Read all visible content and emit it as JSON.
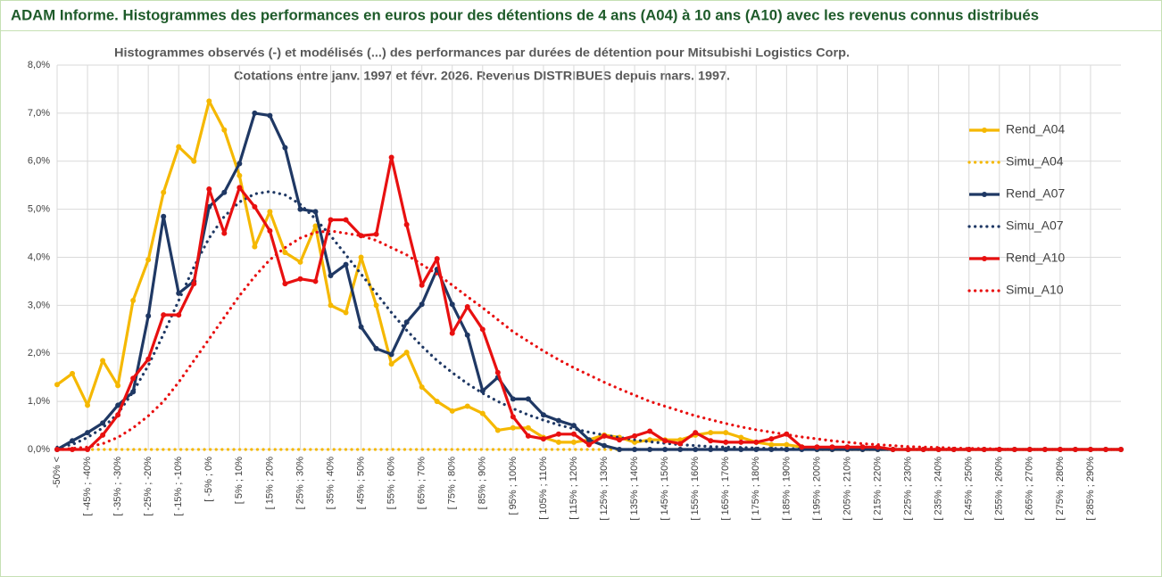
{
  "chart_data": {
    "type": "line",
    "title": "ADAM Informe. Histogrammes des performances en euros pour des détentions de 4 ans (A04) à 10 ans (A10) avec les revenus connus distribués",
    "subtitle": [
      "Histogrammes observés (-) et modélisés (...) des performances par durées de détention pour Mitsubishi Logistics Corp.",
      "Cotations entre janv. 1997 et févr. 2026. Revenus DISTRIBUES depuis mars. 1997."
    ],
    "categories": [
      "-50% <",
      null,
      "[ -45% ; -40%",
      null,
      "[ -35% ; -30%",
      null,
      "[ -25% ; -20%",
      null,
      "[ -15% ; -10%",
      null,
      "[ -5% ; 0%",
      null,
      "[ 5% ; 10%",
      null,
      "[ 15% ; 20%",
      null,
      "[ 25% ; 30%",
      null,
      "[ 35% ; 40%",
      null,
      "[ 45% ; 50%",
      null,
      "[ 55% ; 60%",
      null,
      "[ 65% ; 70%",
      null,
      "[ 75% ; 80%",
      null,
      "[ 85% ; 90%",
      null,
      "[ 95% ; 100%",
      null,
      "[ 105% ; 110%",
      null,
      "[ 115% ; 120%",
      null,
      "[ 125% ; 130%",
      null,
      "[ 135% ; 140%",
      null,
      "[ 145% ; 150%",
      null,
      "[ 155% ; 160%",
      null,
      "[ 165% ; 170%",
      null,
      "[ 175% ; 180%",
      null,
      "[ 185% ; 190%",
      null,
      "[ 195% ; 200%",
      null,
      "[ 205% ; 210%",
      null,
      "[ 215% ; 220%",
      null,
      "[ 225% ; 230%",
      null,
      "[ 235% ; 240%",
      null,
      "[ 245% ; 250%",
      null,
      "[ 255% ; 260%",
      null,
      "[ 265% ; 270%",
      null,
      "[ 275% ; 280%",
      null,
      "[ 285% ; 290%",
      null,
      null
    ],
    "ylim": [
      0,
      8
    ],
    "yticks": [
      {
        "value": 0,
        "label": "0,0%"
      },
      {
        "value": 1,
        "label": "1,0%"
      },
      {
        "value": 2,
        "label": "2,0%"
      },
      {
        "value": 3,
        "label": "3,0%"
      },
      {
        "value": 4,
        "label": "4,0%"
      },
      {
        "value": 5,
        "label": "5,0%"
      },
      {
        "value": 6,
        "label": "6,0%"
      },
      {
        "value": 7,
        "label": "7,0%"
      },
      {
        "value": 8,
        "label": "8,0%"
      }
    ],
    "grid": true,
    "legend": "right",
    "series": [
      {
        "name": "Rend_A04",
        "color": "#f5b800",
        "dotted": false,
        "markers": true,
        "values": [
          1.35,
          1.58,
          0.92,
          1.85,
          1.33,
          3.1,
          3.95,
          5.35,
          6.3,
          6.0,
          7.25,
          6.65,
          5.7,
          4.22,
          4.95,
          4.1,
          3.9,
          4.65,
          3.0,
          2.85,
          4.0,
          3.0,
          1.78,
          2.02,
          1.3,
          1.0,
          0.8,
          0.9,
          0.75,
          0.4,
          0.45,
          0.45,
          0.25,
          0.15,
          0.15,
          0.2,
          0.3,
          0.25,
          0.15,
          0.2,
          0.2,
          0.2,
          0.3,
          0.35,
          0.35,
          0.25,
          0.15,
          0.1,
          0.1,
          0.05,
          0,
          0,
          0,
          0,
          0,
          0,
          0,
          0,
          0,
          0,
          0,
          0,
          0,
          0,
          0,
          0,
          0,
          0,
          0,
          0,
          0
        ]
      },
      {
        "name": "Simu_A04",
        "color": "#f5b800",
        "dotted": true,
        "markers": false,
        "values": [
          0,
          0,
          0,
          0,
          0,
          0,
          0,
          0,
          0,
          0,
          0,
          0,
          0,
          0,
          0,
          0,
          0,
          0,
          0,
          0,
          0,
          0,
          0,
          0,
          0,
          0,
          0,
          0,
          0,
          0,
          0,
          0,
          0,
          0,
          0,
          0,
          0,
          0,
          0,
          0,
          0,
          0,
          0,
          0,
          0,
          0,
          0,
          0,
          0,
          0,
          0,
          0,
          0,
          0,
          0,
          0,
          0,
          0,
          0,
          0,
          0,
          0,
          0,
          0,
          0,
          0,
          0,
          0,
          0,
          0,
          0
        ]
      },
      {
        "name": "Rend_A07",
        "color": "#1f3864",
        "dotted": false,
        "markers": true,
        "values": [
          0,
          0.18,
          0.35,
          0.55,
          0.92,
          1.2,
          2.78,
          4.85,
          3.25,
          3.5,
          5.05,
          5.35,
          5.95,
          7.0,
          6.95,
          6.28,
          5.0,
          4.95,
          3.62,
          3.85,
          2.55,
          2.1,
          1.98,
          2.65,
          3.02,
          3.75,
          3.02,
          2.38,
          1.22,
          1.5,
          1.05,
          1.05,
          0.72,
          0.6,
          0.5,
          0.2,
          0.08,
          0,
          0,
          0,
          0,
          0,
          0,
          0,
          0,
          0,
          0,
          0,
          0,
          0,
          0,
          0,
          0,
          0,
          0,
          0,
          0,
          0,
          0,
          0,
          0,
          0,
          0,
          0,
          0,
          0,
          0,
          0,
          0,
          0,
          0
        ]
      },
      {
        "name": "Simu_A07",
        "color": "#1f3864",
        "dotted": true,
        "markers": false,
        "values": [
          0.05,
          0.1,
          0.25,
          0.45,
          0.75,
          1.2,
          1.75,
          2.4,
          3.1,
          3.8,
          4.4,
          4.85,
          5.15,
          5.32,
          5.37,
          5.3,
          5.1,
          4.8,
          4.45,
          4.05,
          3.65,
          3.25,
          2.85,
          2.48,
          2.15,
          1.85,
          1.6,
          1.37,
          1.17,
          1.0,
          0.85,
          0.72,
          0.61,
          0.51,
          0.43,
          0.36,
          0.3,
          0.25,
          0.2,
          0.16,
          0.13,
          0.1,
          0.08,
          0.06,
          0.05,
          0.04,
          0.03,
          0.02,
          0.02,
          0.01,
          0,
          0,
          0,
          0,
          0,
          0,
          0,
          0,
          0,
          0,
          0,
          0,
          0,
          0,
          0,
          0,
          0,
          0,
          0,
          0,
          0
        ]
      },
      {
        "name": "Rend_A10",
        "color": "#e81010",
        "dotted": false,
        "markers": true,
        "values": [
          0,
          0,
          0,
          0.3,
          0.72,
          1.48,
          1.88,
          2.8,
          2.8,
          3.45,
          5.42,
          4.5,
          5.45,
          5.05,
          4.55,
          3.45,
          3.55,
          3.5,
          4.78,
          4.78,
          4.45,
          4.48,
          6.08,
          4.68,
          3.42,
          3.97,
          2.42,
          2.97,
          2.5,
          1.6,
          0.68,
          0.28,
          0.22,
          0.32,
          0.32,
          0.1,
          0.28,
          0.2,
          0.28,
          0.38,
          0.18,
          0.12,
          0.35,
          0.18,
          0.15,
          0.15,
          0.15,
          0.22,
          0.32,
          0.05,
          0.05,
          0.05,
          0.05,
          0.05,
          0.05,
          0,
          0,
          0,
          0,
          0,
          0,
          0,
          0,
          0,
          0,
          0,
          0,
          0,
          0,
          0,
          0
        ]
      },
      {
        "name": "Simu_A10",
        "color": "#e81010",
        "dotted": true,
        "markers": false,
        "values": [
          0,
          0.02,
          0.05,
          0.12,
          0.25,
          0.45,
          0.7,
          1.0,
          1.4,
          1.85,
          2.3,
          2.75,
          3.2,
          3.6,
          3.95,
          4.2,
          4.4,
          4.52,
          4.55,
          4.5,
          4.45,
          4.35,
          4.2,
          4.05,
          3.85,
          3.65,
          3.42,
          3.18,
          2.95,
          2.7,
          2.45,
          2.25,
          2.05,
          1.87,
          1.7,
          1.55,
          1.4,
          1.26,
          1.13,
          1.0,
          0.9,
          0.8,
          0.7,
          0.62,
          0.54,
          0.47,
          0.41,
          0.36,
          0.31,
          0.26,
          0.22,
          0.18,
          0.15,
          0.12,
          0.1,
          0.08,
          0.06,
          0.05,
          0.04,
          0.03,
          0.02,
          0.02,
          0.01,
          0,
          0,
          0,
          0,
          0,
          0,
          0,
          0
        ]
      }
    ]
  }
}
